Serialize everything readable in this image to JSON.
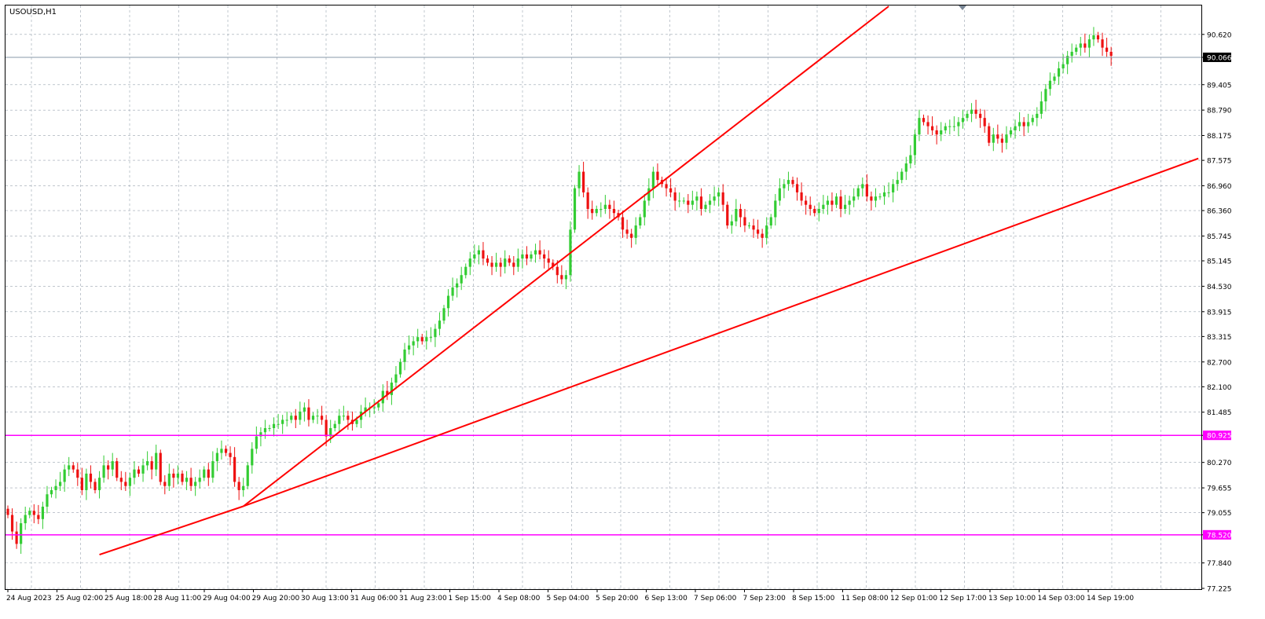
{
  "window": {
    "title": "USOUSD,H1"
  },
  "colors": {
    "background": "#ffffff",
    "grid": "#9aa4b0",
    "bull": "#33cc33",
    "bear": "#ee1111",
    "wick": "#444444",
    "trendline": "#ff0000",
    "level": "#ff00ff",
    "current_price_line": "#8a9aa8",
    "axis_text": "#000000"
  },
  "chart_data": {
    "type": "candlestick",
    "symbol": "USOUSD",
    "timeframe": "H1",
    "title": "USOUSD,H1",
    "grid": true,
    "current_price": "90.066",
    "ylim": [
      77.225,
      91.3
    ],
    "y_ticks": [
      "90.620",
      "90.066",
      "89.405",
      "88.790",
      "88.175",
      "87.575",
      "86.960",
      "86.360",
      "85.745",
      "85.145",
      "84.530",
      "83.915",
      "83.315",
      "82.700",
      "82.100",
      "81.485",
      "80.925",
      "80.270",
      "79.655",
      "79.055",
      "78.520",
      "77.840",
      "77.225"
    ],
    "x_ticks": [
      "24 Aug 2023",
      "25 Aug 02:00",
      "25 Aug 18:00",
      "28 Aug 11:00",
      "29 Aug 04:00",
      "29 Aug 20:00",
      "30 Aug 13:00",
      "31 Aug 06:00",
      "31 Aug 23:00",
      "1 Sep 15:00",
      "4 Sep 08:00",
      "5 Sep 04:00",
      "5 Sep 20:00",
      "6 Sep 13:00",
      "7 Sep 06:00",
      "7 Sep 23:00",
      "8 Sep 15:00",
      "11 Sep 08:00",
      "12 Sep 01:00",
      "12 Sep 17:00",
      "13 Sep 10:00",
      "14 Sep 03:00",
      "14 Sep 19:00"
    ],
    "horizontal_levels": [
      {
        "value": "80.925",
        "color": "#ff00ff"
      },
      {
        "value": "78.520",
        "color": "#ff00ff"
      }
    ],
    "trendlines_bar_index_price": [
      {
        "from": [
          21,
          78.04
        ],
        "to": [
          54,
          79.21
        ],
        "color": "#ff0000"
      },
      {
        "from": [
          54,
          79.21
        ],
        "to": [
          273,
          87.62
        ],
        "color": "#ff0000"
      },
      {
        "from": [
          54,
          79.21
        ],
        "to": [
          202,
          91.3
        ],
        "color": "#ff0000"
      }
    ],
    "close_series": [
      79.0,
      78.6,
      78.3,
      78.8,
      79.0,
      79.1,
      79.0,
      78.9,
      79.2,
      79.5,
      79.6,
      79.7,
      79.8,
      80.1,
      80.2,
      80.1,
      79.9,
      79.6,
      80.0,
      79.8,
      79.6,
      79.9,
      80.2,
      80.1,
      80.3,
      79.9,
      79.8,
      79.7,
      79.9,
      80.1,
      80.0,
      80.2,
      80.3,
      80.1,
      80.5,
      79.8,
      79.7,
      80.0,
      79.9,
      80.0,
      79.8,
      79.9,
      79.7,
      79.8,
      79.9,
      80.1,
      79.9,
      80.3,
      80.5,
      80.6,
      80.5,
      80.4,
      79.8,
      79.6,
      79.7,
      80.2,
      80.6,
      80.9,
      81.0,
      81.1,
      81.1,
      81.2,
      81.2,
      81.3,
      81.3,
      81.4,
      81.3,
      81.5,
      81.6,
      81.3,
      81.4,
      81.4,
      81.3,
      80.9,
      81.1,
      81.2,
      81.4,
      81.4,
      81.3,
      81.2,
      81.3,
      81.5,
      81.6,
      81.6,
      81.6,
      81.7,
      82.0,
      81.9,
      82.2,
      82.4,
      82.7,
      83.0,
      83.1,
      83.2,
      83.3,
      83.2,
      83.3,
      83.3,
      83.5,
      83.7,
      84.0,
      84.3,
      84.5,
      84.6,
      84.8,
      85.0,
      85.2,
      85.3,
      85.4,
      85.2,
      85.1,
      85.0,
      85.1,
      85.0,
      85.2,
      85.1,
      85.0,
      85.2,
      85.3,
      85.2,
      85.3,
      85.4,
      85.3,
      85.2,
      85.1,
      85.0,
      84.8,
      84.7,
      84.8,
      85.9,
      86.9,
      87.3,
      86.8,
      86.4,
      86.3,
      86.4,
      86.4,
      86.5,
      86.4,
      86.3,
      86.2,
      85.9,
      85.8,
      85.7,
      86.0,
      86.2,
      86.6,
      86.9,
      87.3,
      87.1,
      87.0,
      86.9,
      86.8,
      86.6,
      86.6,
      86.6,
      86.5,
      86.6,
      86.7,
      86.4,
      86.5,
      86.6,
      86.7,
      86.8,
      86.5,
      86.0,
      86.1,
      86.4,
      86.2,
      86.0,
      86.0,
      85.9,
      85.8,
      85.7,
      86.0,
      86.2,
      86.6,
      86.9,
      87.0,
      87.1,
      87.0,
      86.8,
      86.6,
      86.5,
      86.4,
      86.3,
      86.4,
      86.5,
      86.6,
      86.5,
      86.7,
      86.4,
      86.5,
      86.6,
      86.7,
      86.9,
      87.0,
      86.7,
      86.6,
      86.7,
      86.7,
      86.8,
      86.8,
      87.0,
      87.1,
      87.3,
      87.5,
      87.7,
      88.2,
      88.6,
      88.5,
      88.4,
      88.3,
      88.2,
      88.3,
      88.4,
      88.4,
      88.4,
      88.5,
      88.6,
      88.7,
      88.8,
      88.7,
      88.6,
      88.4,
      88.0,
      88.2,
      88.1,
      88.0,
      88.2,
      88.3,
      88.4,
      88.5,
      88.4,
      88.5,
      88.6,
      88.7,
      89.0,
      89.3,
      89.5,
      89.6,
      89.8,
      89.9,
      90.1,
      90.2,
      90.3,
      90.4,
      90.3,
      90.5,
      90.6,
      90.5,
      90.3,
      90.2,
      90.1
    ]
  }
}
